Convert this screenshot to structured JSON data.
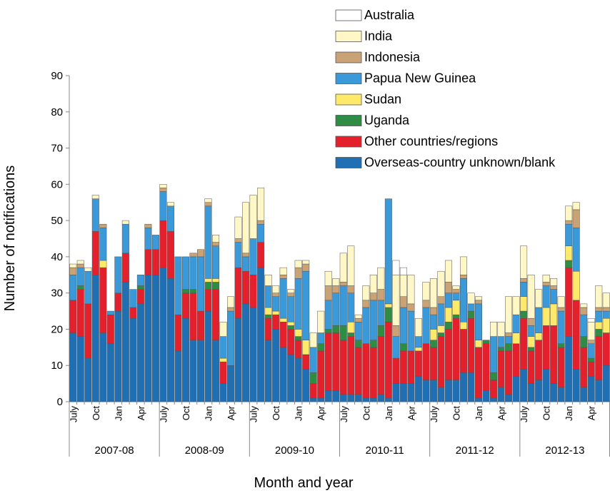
{
  "chart_data": {
    "type": "stacked-bar",
    "x_title": "Month and year",
    "y_title": "Number of notifications",
    "ylim": [
      0,
      90
    ],
    "yticks": [
      0,
      10,
      20,
      30,
      40,
      50,
      60,
      70,
      80,
      90
    ],
    "categories": [
      "July",
      null,
      null,
      "Oct",
      null,
      null,
      "Jan",
      null,
      null,
      "Apr",
      null,
      null,
      "July",
      null,
      null,
      "Oct",
      null,
      null,
      "Jan",
      null,
      null,
      "Apr",
      null,
      null,
      "July",
      null,
      null,
      "Oct",
      null,
      null,
      "Jan",
      null,
      null,
      "Apr",
      null,
      null,
      "July",
      null,
      null,
      "Oct",
      null,
      null,
      "Jan",
      null,
      null,
      "Apr",
      null,
      null,
      "July",
      null,
      null,
      "Oct",
      null,
      null,
      "Jan",
      null,
      null,
      "Apr",
      null,
      null,
      "July",
      null,
      null,
      "Oct",
      null,
      null,
      "Jan",
      null,
      null,
      "Apr",
      null,
      null
    ],
    "groups": [
      "2007-08",
      "2008-09",
      "2009-10",
      "2010-11",
      "2011-12",
      "2012-13"
    ],
    "legend": "top-right",
    "series": [
      {
        "name": "Australia",
        "color": "#ffffff",
        "values": [
          0,
          0,
          0,
          0,
          0,
          0,
          0,
          0,
          0,
          0,
          0,
          0,
          0,
          0,
          0,
          0,
          0,
          0,
          0,
          0,
          0,
          0,
          0,
          0,
          0,
          0,
          0,
          0,
          0,
          0,
          0,
          0,
          0,
          0,
          0,
          0,
          0,
          0,
          0,
          0,
          0,
          0,
          0,
          4,
          2,
          0,
          0,
          0,
          0,
          0,
          0,
          0,
          0,
          0,
          0,
          0,
          0,
          0,
          0,
          0,
          0,
          0,
          0,
          0,
          0,
          0,
          0,
          0,
          0,
          1,
          0,
          0
        ]
      },
      {
        "name": "India",
        "color": "#fff8c6",
        "values": [
          1,
          1,
          1,
          1,
          0,
          0,
          0,
          1,
          0,
          0,
          0,
          0,
          1,
          1,
          0,
          0,
          0,
          0,
          1,
          2,
          4,
          3,
          6,
          14,
          12,
          9,
          3,
          2,
          2,
          1,
          2,
          1,
          4,
          6,
          4,
          2,
          8,
          11,
          1,
          4,
          5,
          6,
          0,
          14,
          6,
          8,
          5,
          5,
          8,
          7,
          6,
          1,
          5,
          3,
          1,
          0,
          4,
          4,
          10,
          5,
          9,
          12,
          5,
          2,
          2,
          3,
          4,
          2,
          1,
          5,
          6,
          4
        ]
      },
      {
        "name": "Indonesia",
        "color": "#c9a276",
        "values": [
          2,
          1,
          0,
          0,
          1,
          0,
          0,
          0,
          0,
          0,
          1,
          0,
          1,
          0,
          0,
          0,
          1,
          2,
          1,
          1,
          0,
          1,
          1,
          1,
          0,
          1,
          0,
          1,
          1,
          1,
          3,
          2,
          0,
          0,
          4,
          2,
          1,
          2,
          1,
          2,
          2,
          3,
          0,
          3,
          3,
          2,
          0,
          2,
          2,
          2,
          3,
          1,
          1,
          0,
          1,
          0,
          0,
          0,
          1,
          0,
          1,
          2,
          0,
          1,
          1,
          1,
          1,
          5,
          2,
          1,
          1,
          1
        ]
      },
      {
        "name": "Papua New Guinea",
        "color": "#3a9ad9",
        "values": [
          7,
          5,
          9,
          9,
          9,
          1,
          10,
          8,
          5,
          3,
          6,
          4,
          8,
          7,
          16,
          9,
          9,
          15,
          20,
          9,
          6,
          15,
          7,
          4,
          10,
          5,
          6,
          4,
          11,
          7,
          14,
          19,
          7,
          3,
          8,
          9,
          11,
          8,
          5,
          10,
          11,
          7,
          29,
          6,
          10,
          11,
          3,
          10,
          4,
          6,
          4,
          2,
          12,
          2,
          10,
          0,
          10,
          3,
          2,
          5,
          4,
          3,
          7,
          6,
          4,
          9,
          6,
          12,
          6,
          4,
          3,
          2
        ]
      },
      {
        "name": "Sudan",
        "color": "#fde96a",
        "values": [
          0,
          0,
          0,
          0,
          2,
          0,
          0,
          0,
          0,
          0,
          0,
          0,
          0,
          0,
          0,
          0,
          0,
          0,
          1,
          1,
          1,
          0,
          0,
          0,
          0,
          0,
          2,
          1,
          1,
          1,
          2,
          4,
          0,
          0,
          0,
          0,
          0,
          3,
          0,
          0,
          0,
          0,
          1,
          0,
          0,
          0,
          1,
          0,
          3,
          2,
          4,
          4,
          2,
          0,
          2,
          0,
          0,
          0,
          0,
          3,
          4,
          3,
          2,
          5,
          6,
          0,
          4,
          8,
          0,
          0,
          2,
          4
        ]
      },
      {
        "name": "Uganda",
        "color": "#2f8c45",
        "values": [
          0,
          1,
          0,
          0,
          0,
          0,
          0,
          0,
          0,
          1,
          0,
          0,
          0,
          0,
          0,
          1,
          1,
          0,
          2,
          2,
          0,
          0,
          0,
          0,
          0,
          0,
          1,
          0,
          0,
          1,
          1,
          0,
          3,
          2,
          1,
          2,
          4,
          1,
          2,
          0,
          2,
          3,
          4,
          0,
          2,
          0,
          0,
          0,
          2,
          1,
          2,
          1,
          0,
          2,
          0,
          1,
          2,
          1,
          2,
          0,
          2,
          1,
          0,
          0,
          0,
          1,
          2,
          0,
          3,
          1,
          2,
          0
        ]
      },
      {
        "name": "Other countries/regions",
        "color": "#e3202c",
        "values": [
          9,
          13,
          15,
          12,
          18,
          8,
          5,
          8,
          3,
          4,
          7,
          7,
          13,
          13,
          10,
          7,
          13,
          8,
          6,
          14,
          6,
          0,
          14,
          9,
          9,
          7,
          6,
          4,
          7,
          7,
          5,
          4,
          4,
          13,
          16,
          16,
          15,
          16,
          13,
          15,
          14,
          16,
          21,
          7,
          9,
          9,
          7,
          10,
          9,
          14,
          14,
          17,
          12,
          15,
          14,
          13,
          5,
          10,
          12,
          9,
          14,
          9,
          11,
          12,
          16,
          11,
          19,
          19,
          11,
          4,
          12,
          9
        ]
      },
      {
        "name": "Overseas-country unknown/blank",
        "color": "#1f6fb4",
        "values": [
          19,
          18,
          12,
          35,
          19,
          16,
          25,
          33,
          23,
          27,
          35,
          35,
          37,
          34,
          14,
          23,
          17,
          17,
          25,
          17,
          5,
          10,
          23,
          27,
          26,
          37,
          17,
          20,
          15,
          13,
          12,
          9,
          1,
          1,
          3,
          3,
          2,
          2,
          2,
          1,
          1,
          2,
          1,
          5,
          5,
          5,
          7,
          6,
          6,
          4,
          6,
          6,
          8,
          8,
          1,
          3,
          1,
          4,
          2,
          7,
          9,
          5,
          6,
          9,
          5,
          4,
          18,
          9,
          4,
          7,
          6,
          10
        ]
      }
    ]
  }
}
